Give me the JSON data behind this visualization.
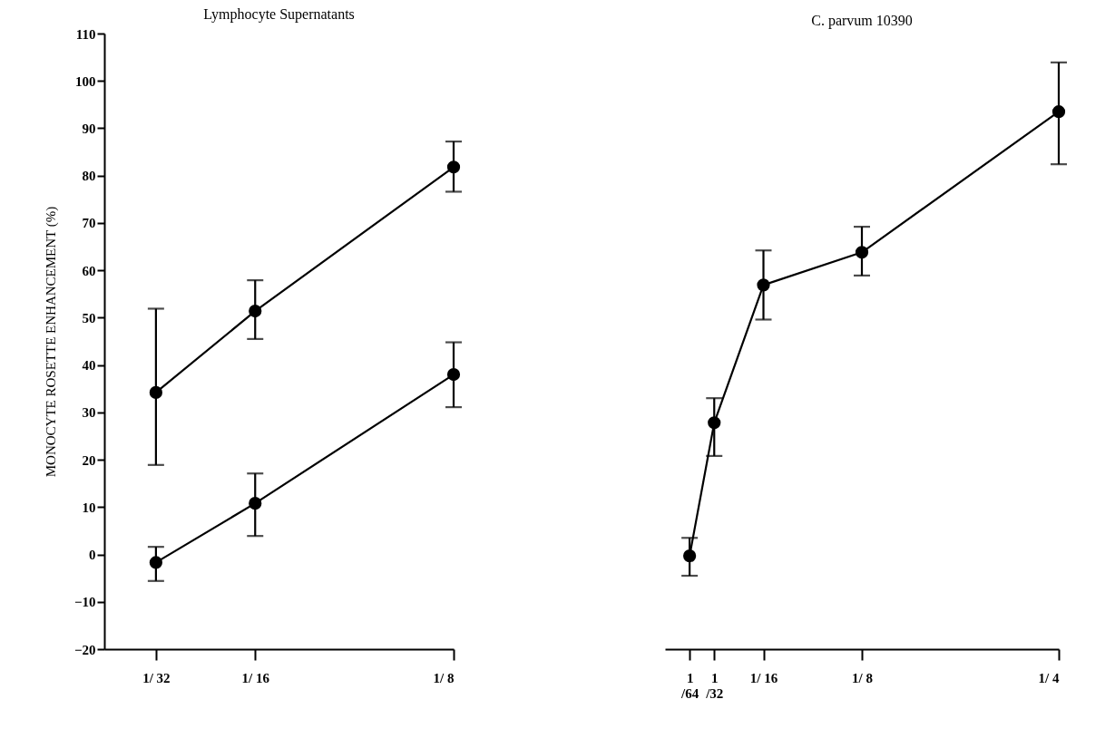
{
  "chart_data": [
    {
      "type": "line",
      "title": "Lymphocyte Supernatants",
      "ylabel": "MONOCYTE ROSETTE ENHANCEMENT (%)",
      "marker": "circle",
      "x": [
        0.03125,
        0.0625,
        0.125
      ],
      "xlim": [
        0.015,
        0.125
      ],
      "xticks": [
        {
          "value": 0.03125,
          "label": "1/ 32"
        },
        {
          "value": 0.0625,
          "label": "1/ 16"
        },
        {
          "value": 0.125,
          "label": "1/ 8"
        }
      ],
      "ylim": [
        -20,
        110
      ],
      "yticks": [
        -20,
        -10,
        0,
        10,
        20,
        30,
        40,
        50,
        60,
        70,
        80,
        90,
        100,
        110
      ],
      "series": [
        {
          "color": "#000000",
          "values": [
            34.2,
            51.4,
            81.8
          ],
          "errors": [
            [
              18.9,
              51.9
            ],
            [
              45.5,
              57.9
            ],
            [
              76.6,
              87.2
            ]
          ]
        },
        {
          "color": "#000000",
          "values": [
            -1.7,
            10.8,
            38.0
          ],
          "errors": [
            [
              -5.6,
              1.6
            ],
            [
              3.9,
              17.1
            ],
            [
              31.1,
              44.8
            ]
          ]
        }
      ]
    },
    {
      "type": "line",
      "title": "C. parvum 10390",
      "marker": "circle",
      "tick_labels": "x",
      "x": [
        0.015625,
        0.03125,
        0.0625,
        0.125,
        0.25
      ],
      "xlim": [
        0,
        0.25
      ],
      "xticks": [
        {
          "value": 0.015625,
          "label": "1/64"
        },
        {
          "value": 0.03125,
          "label": "1/32"
        },
        {
          "value": 0.0625,
          "label": "1/ 16"
        },
        {
          "value": 0.125,
          "label": "1/ 8"
        },
        {
          "value": 0.25,
          "label": "1/ 4"
        }
      ],
      "ylim": [
        -20,
        110
      ],
      "series": [
        {
          "color": "#000000",
          "values": [
            -0.3,
            27.8,
            56.9,
            63.8,
            93.5
          ],
          "errors": [
            [
              -4.5,
              3.5
            ],
            [
              20.8,
              33.0
            ],
            [
              49.6,
              64.2
            ],
            [
              58.9,
              69.2
            ],
            [
              82.4,
              103.9
            ]
          ]
        }
      ]
    }
  ]
}
